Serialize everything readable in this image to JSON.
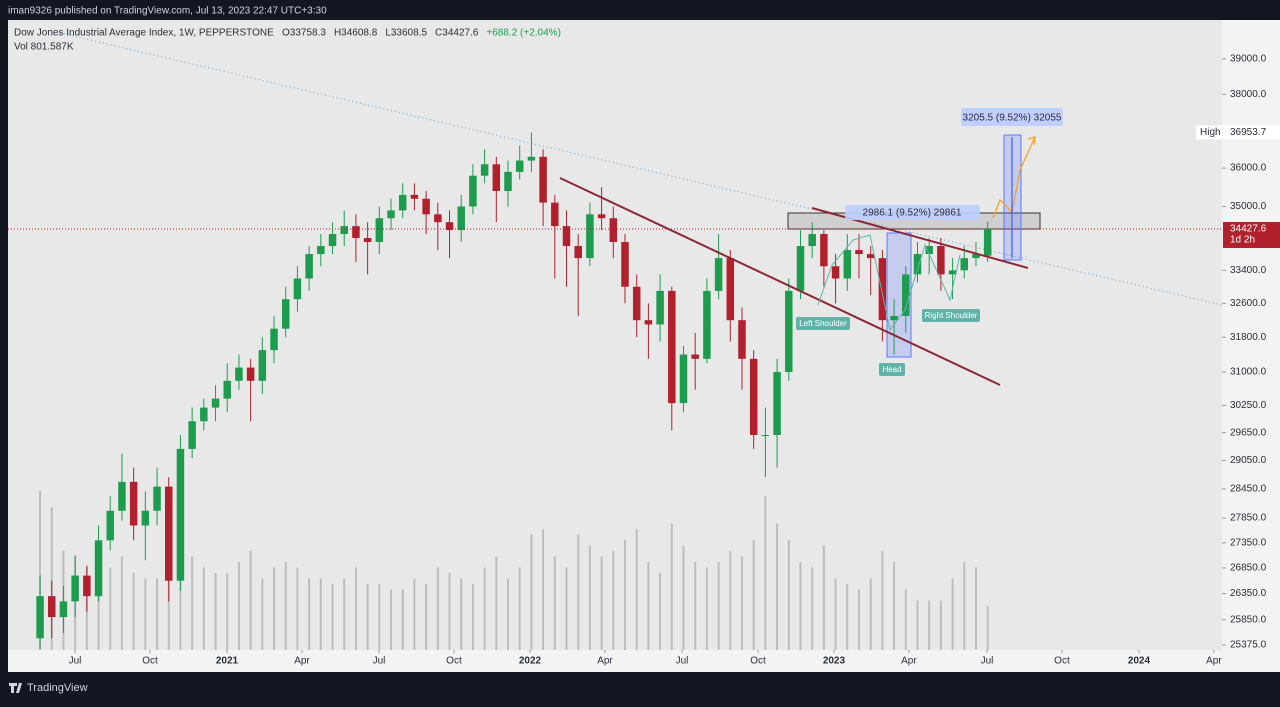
{
  "header": {
    "publisher": "iman9326 published on TradingView.com, Jul 13, 2023 22:47 UTC+3:30"
  },
  "footer": {
    "brand": "TradingView"
  },
  "chart_data": {
    "type": "candlestick",
    "title": "Dow Jones Industrial Average Index, 1W, PEPPERSTONE",
    "ohlc_labels": [
      "O33758.3",
      "H34608.8",
      "L33608.5",
      "C34427.6",
      "+688.2 (+2.04%)"
    ],
    "volume_label": "Vol  801.587K",
    "log_scale": true,
    "up_color": "#1e9c4e",
    "down_color": "#b0202d",
    "volume_color": "#bdbdbd",
    "ylim": [
      25282,
      40130
    ],
    "yticks": [
      {
        "value": 39000,
        "label": "39000.0"
      },
      {
        "value": 38000,
        "label": "38000.0"
      },
      {
        "value": 36000,
        "label": "36000.0"
      },
      {
        "value": 35000,
        "label": "35000.0"
      },
      {
        "value": 33400,
        "label": "33400.0"
      },
      {
        "value": 32600,
        "label": "32600.0"
      },
      {
        "value": 31800,
        "label": "31800.0"
      },
      {
        "value": 31000,
        "label": "31000.0"
      },
      {
        "value": 30250,
        "label": "30250.0"
      },
      {
        "value": 29650,
        "label": "29650.0"
      },
      {
        "value": 29050,
        "label": "29050.0"
      },
      {
        "value": 28450,
        "label": "28450.0"
      },
      {
        "value": 27850,
        "label": "27850.0"
      },
      {
        "value": 27350,
        "label": "27350.0"
      },
      {
        "value": 26850,
        "label": "26850.0"
      },
      {
        "value": 26350,
        "label": "26350.0"
      },
      {
        "value": 25850,
        "label": "25850.0"
      },
      {
        "value": 25375,
        "label": "25375.0"
      }
    ],
    "xlim": [
      -2.74,
      101.03
    ],
    "xticks": [
      {
        "value": 2.99,
        "label": "Jul"
      },
      {
        "value": 9.4,
        "label": "Oct"
      },
      {
        "value": 15.98,
        "label": "2021"
      },
      {
        "value": 22.39,
        "label": "Apr"
      },
      {
        "value": 28.97,
        "label": "Jul"
      },
      {
        "value": 35.38,
        "label": "Oct"
      },
      {
        "value": 41.88,
        "label": "2022"
      },
      {
        "value": 48.29,
        "label": "Apr"
      },
      {
        "value": 54.87,
        "label": "Jul"
      },
      {
        "value": 61.37,
        "label": "Oct"
      },
      {
        "value": 67.86,
        "label": "2023"
      },
      {
        "value": 74.27,
        "label": "Apr"
      },
      {
        "value": 80.94,
        "label": "Jul"
      },
      {
        "value": 87.35,
        "label": "Oct"
      },
      {
        "value": 93.93,
        "label": "2024"
      },
      {
        "value": 100.34,
        "label": "Apr"
      }
    ],
    "open": [
      25500,
      26300,
      25900,
      26200,
      26700,
      26300,
      27400,
      28000,
      28600,
      27700,
      28000,
      28500,
      26600,
      29300,
      29900,
      30200,
      30400,
      30800,
      31100,
      30800,
      31500,
      32000,
      32700,
      33200,
      33800,
      34000,
      34300,
      34500,
      34200,
      34100,
      34700,
      34900,
      35300,
      35200,
      34800,
      34600,
      34400,
      35000,
      35800,
      36100,
      35400,
      35900,
      36200,
      36300,
      35100,
      34500,
      34000,
      33700,
      34800,
      34700,
      34100,
      33000,
      32200,
      32100,
      32900,
      30300,
      31400,
      31300,
      32900,
      33700,
      32200,
      31300,
      29600,
      29600,
      31000,
      32900,
      34000,
      34300,
      33500,
      33200,
      33900,
      33800,
      33700,
      32200,
      32300,
      33300,
      33800,
      34000,
      33300,
      33400,
      33700,
      33758.3
    ],
    "high": [
      26700,
      26600,
      26500,
      27100,
      26900,
      27700,
      28300,
      29200,
      28900,
      28400,
      28900,
      28700,
      29600,
      30200,
      30400,
      30700,
      31200,
      31400,
      31300,
      31800,
      32300,
      33000,
      33500,
      34000,
      34300,
      34600,
      34900,
      34800,
      34600,
      35000,
      35200,
      35600,
      35600,
      35400,
      35100,
      34900,
      35300,
      36100,
      36500,
      36300,
      36200,
      36600,
      36953.7,
      36500,
      35300,
      34900,
      34300,
      35100,
      35500,
      35000,
      34300,
      33300,
      32600,
      33300,
      33000,
      31600,
      31900,
      33200,
      34300,
      33900,
      32500,
      31500,
      30200,
      31300,
      33200,
      34400,
      34600,
      34400,
      33800,
      34300,
      34300,
      34000,
      33900,
      32700,
      33500,
      34100,
      34200,
      34200,
      33700,
      34000,
      34100,
      34608.8
    ],
    "low": [
      25300,
      25500,
      25600,
      25900,
      26000,
      26200,
      27200,
      27800,
      27400,
      27000,
      27700,
      26200,
      26400,
      29100,
      29700,
      29900,
      30100,
      30600,
      29900,
      30500,
      31200,
      31800,
      32400,
      32900,
      33500,
      33800,
      34000,
      33600,
      33300,
      33800,
      34400,
      34700,
      34900,
      34300,
      33900,
      33700,
      34100,
      34800,
      35600,
      34600,
      35000,
      35700,
      35900,
      34500,
      33200,
      33000,
      32300,
      33500,
      34400,
      33700,
      32600,
      31800,
      31300,
      31700,
      29700,
      30100,
      30600,
      31200,
      32700,
      31700,
      30600,
      29300,
      28700,
      28900,
      30800,
      32700,
      33700,
      33000,
      32600,
      32900,
      33200,
      32800,
      31700,
      31400,
      31900,
      33100,
      33300,
      32900,
      32700,
      33200,
      33500,
      33608.5
    ],
    "close": [
      26300,
      25900,
      26200,
      26700,
      26300,
      27400,
      28000,
      28600,
      27700,
      28000,
      28500,
      26600,
      29300,
      29900,
      30200,
      30400,
      30800,
      31100,
      30800,
      31500,
      32000,
      32700,
      33200,
      33800,
      34000,
      34300,
      34500,
      34200,
      34100,
      34700,
      34900,
      35300,
      35200,
      34800,
      34600,
      34400,
      35000,
      35800,
      36100,
      35400,
      35900,
      36200,
      36300,
      35100,
      34500,
      34000,
      33700,
      34800,
      34700,
      34100,
      33000,
      32200,
      32100,
      32900,
      30300,
      31400,
      31300,
      32900,
      33700,
      32200,
      31300,
      29600,
      29600,
      31000,
      32900,
      34000,
      34300,
      33500,
      33200,
      33900,
      33800,
      33700,
      32200,
      32300,
      33300,
      33800,
      34000,
      33300,
      33400,
      33700,
      33800,
      34427.6
    ],
    "volume": [
      2900,
      2600,
      1800,
      1700,
      1500,
      1400,
      1500,
      1700,
      1400,
      1300,
      1300,
      1600,
      2000,
      1700,
      1500,
      1400,
      1400,
      1600,
      1800,
      1300,
      1500,
      1600,
      1500,
      1300,
      1300,
      1200,
      1300,
      1500,
      1200,
      1200,
      1100,
      1100,
      1300,
      1200,
      1500,
      1400,
      1300,
      1200,
      1500,
      1700,
      1300,
      1500,
      2100,
      2200,
      1700,
      1500,
      2100,
      1900,
      1700,
      1800,
      2000,
      2200,
      1600,
      1400,
      2300,
      1900,
      1600,
      1500,
      1600,
      1800,
      1700,
      2000,
      2800,
      2300,
      2000,
      1600,
      1500,
      1900,
      1300,
      1200,
      1100,
      1300,
      1800,
      1600,
      1100,
      900,
      900,
      900,
      1300,
      1600,
      1500,
      801.587
    ],
    "high_marker": {
      "label": "High",
      "value": 36953.7
    },
    "countdown": "1d 2h",
    "annotations": {
      "measure_1": "2986.1 (9.52%) 29861",
      "measure_2": "3205.5 (9.52%) 32055",
      "left_shoulder": "Left Shoulder",
      "head": "Head",
      "right_shoulder": "Right Shoulder"
    }
  }
}
